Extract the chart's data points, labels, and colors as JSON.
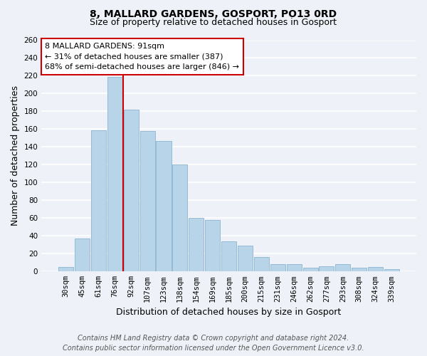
{
  "title": "8, MALLARD GARDENS, GOSPORT, PO13 0RD",
  "subtitle": "Size of property relative to detached houses in Gosport",
  "xlabel": "Distribution of detached houses by size in Gosport",
  "ylabel": "Number of detached properties",
  "categories": [
    "30sqm",
    "45sqm",
    "61sqm",
    "76sqm",
    "92sqm",
    "107sqm",
    "123sqm",
    "138sqm",
    "154sqm",
    "169sqm",
    "185sqm",
    "200sqm",
    "215sqm",
    "231sqm",
    "246sqm",
    "262sqm",
    "277sqm",
    "293sqm",
    "308sqm",
    "324sqm",
    "339sqm"
  ],
  "values": [
    5,
    37,
    159,
    219,
    182,
    158,
    147,
    120,
    60,
    58,
    34,
    29,
    16,
    8,
    8,
    4,
    6,
    8,
    4,
    5,
    3
  ],
  "bar_color": "#b8d4e8",
  "bar_edge_color": "#8ab4d0",
  "vline_color": "#cc0000",
  "ylim": [
    0,
    260
  ],
  "yticks": [
    0,
    20,
    40,
    60,
    80,
    100,
    120,
    140,
    160,
    180,
    200,
    220,
    240,
    260
  ],
  "annotation_box_title": "8 MALLARD GARDENS: 91sqm",
  "annotation_line1": "← 31% of detached houses are smaller (387)",
  "annotation_line2": "68% of semi-detached houses are larger (846) →",
  "annotation_box_color": "#ffffff",
  "annotation_box_edge_color": "#cc0000",
  "footer_line1": "Contains HM Land Registry data © Crown copyright and database right 2024.",
  "footer_line2": "Contains public sector information licensed under the Open Government Licence v3.0.",
  "background_color": "#eef2f8",
  "plot_bg_color": "#eef2f8",
  "grid_color": "#ffffff",
  "title_fontsize": 10,
  "subtitle_fontsize": 9,
  "axis_label_fontsize": 9,
  "tick_fontsize": 7.5,
  "footer_fontsize": 7,
  "vline_x_pos": 3.5
}
